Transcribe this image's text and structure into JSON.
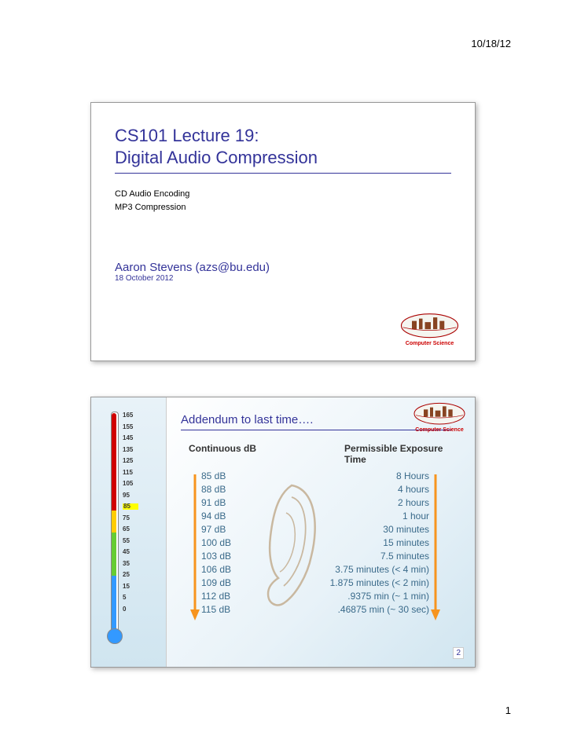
{
  "header": {
    "date": "10/18/12",
    "page_number": "1"
  },
  "slide1": {
    "title_line1": "CS101 Lecture 19:",
    "title_line2": "Digital Audio Compression",
    "subtopic1": "CD Audio Encoding",
    "subtopic2": "MP3 Compression",
    "author": "Aaron Stevens (azs@bu.edu)",
    "date": "18 October 2012",
    "dept": "Computer Science"
  },
  "slide2": {
    "title": "Addendum to last time….",
    "dept": "Computer Science",
    "header_left": "Continuous dB",
    "header_right": "Permissible Exposure Time",
    "slide_number": "2",
    "db_values": [
      "85 dB",
      "88 dB",
      "91 dB",
      "94 dB",
      "97 dB",
      "100 dB",
      "103 dB",
      "106 dB",
      "109 dB",
      "112 dB",
      "115 dB"
    ],
    "times": [
      "8 Hours",
      "4 hours",
      "2 hours",
      "1 hour",
      "30 minutes",
      "15 minutes",
      "7.5 minutes",
      "3.75 minutes (< 4 min)",
      "1.875 minutes (< 2 min)",
      ".9375 min (~ 1 min)",
      ".46875 min (~ 30 sec)"
    ],
    "thermo_ticks": [
      {
        "n": "165",
        "l": ""
      },
      {
        "n": "155",
        "l": ""
      },
      {
        "n": "145",
        "l": ""
      },
      {
        "n": "135",
        "l": ""
      },
      {
        "n": "125",
        "l": ""
      },
      {
        "n": "115",
        "l": ""
      },
      {
        "n": "105",
        "l": ""
      },
      {
        "n": "95",
        "l": ""
      },
      {
        "n": "85",
        "l": ""
      },
      {
        "n": "75",
        "l": ""
      },
      {
        "n": "65",
        "l": ""
      },
      {
        "n": "55",
        "l": ""
      },
      {
        "n": "45",
        "l": ""
      },
      {
        "n": "35",
        "l": ""
      },
      {
        "n": "25",
        "l": ""
      },
      {
        "n": "15",
        "l": ""
      },
      {
        "n": "5",
        "l": ""
      },
      {
        "n": "0",
        "l": ""
      }
    ],
    "colors": {
      "title_color": "#333399",
      "data_text": "#3a6a8a",
      "arrow": "#f7941e"
    }
  }
}
